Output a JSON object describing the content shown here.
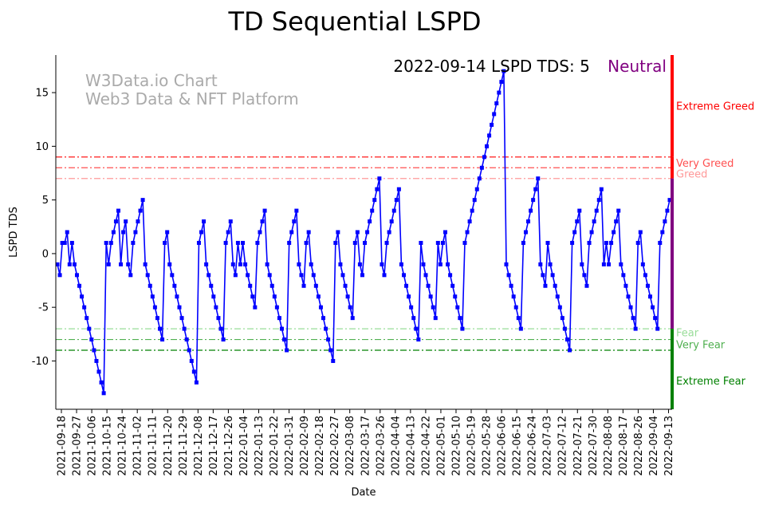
{
  "chart_data": {
    "type": "line",
    "title": "TD Sequential LSPD",
    "xlabel": "Date",
    "ylabel": "LSPD TDS",
    "ylim": [
      -14.5,
      18.5
    ],
    "yticks": [
      -10,
      -5,
      0,
      5,
      10,
      15
    ],
    "x_tick_labels": [
      "2021-09-18",
      "2021-09-27",
      "2021-10-06",
      "2021-10-15",
      "2021-10-24",
      "2021-11-02",
      "2021-11-11",
      "2021-11-20",
      "2021-11-29",
      "2021-12-08",
      "2021-12-17",
      "2021-12-26",
      "2022-01-04",
      "2022-01-13",
      "2022-01-22",
      "2022-01-31",
      "2022-02-09",
      "2022-02-18",
      "2022-02-27",
      "2022-03-08",
      "2022-03-17",
      "2022-03-26",
      "2022-04-04",
      "2022-04-13",
      "2022-04-22",
      "2022-05-01",
      "2022-05-10",
      "2022-05-19",
      "2022-05-28",
      "2022-06-06",
      "2022-06-15",
      "2022-06-24",
      "2022-07-03",
      "2022-07-12",
      "2022-07-21",
      "2022-07-30",
      "2022-08-08",
      "2022-08-17",
      "2022-08-26",
      "2022-09-04",
      "2022-09-13"
    ],
    "watermark": [
      "W3Data.io Chart",
      "Web3 Data & NFT Platform"
    ],
    "status_text": "2022-09-14 LSPD TDS: 5",
    "status_label": "Neutral",
    "status_color": "#800080",
    "thresholds": [
      {
        "name": "Extreme Greed",
        "value": 9,
        "color": "#ff0000",
        "dash": "dashdot"
      },
      {
        "name": "Very Greed",
        "value": 8,
        "color": "#ff5050",
        "dash": "dashdot"
      },
      {
        "name": "Greed",
        "value": 7,
        "color": "#ff9999",
        "dash": "dashdot"
      },
      {
        "name": "Fear",
        "value": -7,
        "color": "#99dd99",
        "dash": "dashdot"
      },
      {
        "name": "Very Fear",
        "value": -8,
        "color": "#50b050",
        "dash": "dashdot"
      },
      {
        "name": "Extreme Fear",
        "value": -9,
        "color": "#008000",
        "dash": "dashdot"
      }
    ],
    "zone_labels": [
      {
        "text": "Extreme Greed",
        "y": 13.7,
        "color": "#ff0000"
      },
      {
        "text": "Very Greed",
        "y": 8.4,
        "color": "#ff5050"
      },
      {
        "text": "Greed",
        "y": 7.4,
        "color": "#ff9999"
      },
      {
        "text": "Fear",
        "y": -7.4,
        "color": "#99dd99"
      },
      {
        "text": "Very Fear",
        "y": -8.5,
        "color": "#50b050"
      },
      {
        "text": "Extreme Fear",
        "y": -11.9,
        "color": "#008000"
      }
    ],
    "zone_bars": [
      {
        "from": 9,
        "to": 18.5,
        "color": "#ff0000"
      },
      {
        "from": 7,
        "to": 9,
        "color": "#ff0000"
      },
      {
        "from": -7,
        "to": 7,
        "color": "#800080"
      },
      {
        "from": -9,
        "to": -7,
        "color": "#008000"
      },
      {
        "from": -14.5,
        "to": -9,
        "color": "#008000"
      }
    ],
    "series": [
      {
        "name": "LSPD TDS",
        "color": "#0000ff",
        "values": [
          -1,
          -2,
          1,
          1,
          2,
          -1,
          1,
          -1,
          -2,
          -3,
          -4,
          -5,
          -6,
          -7,
          -8,
          -9,
          -10,
          -11,
          -12,
          -13,
          1,
          -1,
          1,
          2,
          3,
          4,
          -1,
          2,
          3,
          -1,
          -2,
          1,
          2,
          3,
          4,
          5,
          -1,
          -2,
          -3,
          -4,
          -5,
          -6,
          -7,
          -8,
          1,
          2,
          -1,
          -2,
          -3,
          -4,
          -5,
          -6,
          -7,
          -8,
          -9,
          -10,
          -11,
          -12,
          1,
          2,
          3,
          -1,
          -2,
          -3,
          -4,
          -5,
          -6,
          -7,
          -8,
          1,
          2,
          3,
          -1,
          -2,
          1,
          -1,
          1,
          -1,
          -2,
          -3,
          -4,
          -5,
          1,
          2,
          3,
          4,
          -1,
          -2,
          -3,
          -4,
          -5,
          -6,
          -7,
          -8,
          -9,
          1,
          2,
          3,
          4,
          -1,
          -2,
          -3,
          1,
          2,
          -1,
          -2,
          -3,
          -4,
          -5,
          -6,
          -7,
          -8,
          -9,
          -10,
          1,
          2,
          -1,
          -2,
          -3,
          -4,
          -5,
          -6,
          1,
          2,
          -1,
          -2,
          1,
          2,
          3,
          4,
          5,
          6,
          7,
          -1,
          -2,
          1,
          2,
          3,
          4,
          5,
          6,
          -1,
          -2,
          -3,
          -4,
          -5,
          -6,
          -7,
          -8,
          1,
          -1,
          -2,
          -3,
          -4,
          -5,
          -6,
          1,
          -1,
          1,
          2,
          -1,
          -2,
          -3,
          -4,
          -5,
          -6,
          -7,
          1,
          2,
          3,
          4,
          5,
          6,
          7,
          8,
          9,
          10,
          11,
          12,
          13,
          14,
          15,
          16,
          17,
          -1,
          -2,
          -3,
          -4,
          -5,
          -6,
          -7,
          1,
          2,
          3,
          4,
          5,
          6,
          7,
          -1,
          -2,
          -3,
          1,
          -1,
          -2,
          -3,
          -4,
          -5,
          -6,
          -7,
          -8,
          -9,
          1,
          2,
          3,
          4,
          -1,
          -2,
          -3,
          1,
          2,
          3,
          4,
          5,
          6,
          -1,
          1,
          -1,
          1,
          2,
          3,
          4,
          -1,
          -2,
          -3,
          -4,
          -5,
          -6,
          -7,
          1,
          2,
          -1,
          -2,
          -3,
          -4,
          -5,
          -6,
          -7,
          1,
          2,
          3,
          4,
          5
        ]
      }
    ]
  }
}
